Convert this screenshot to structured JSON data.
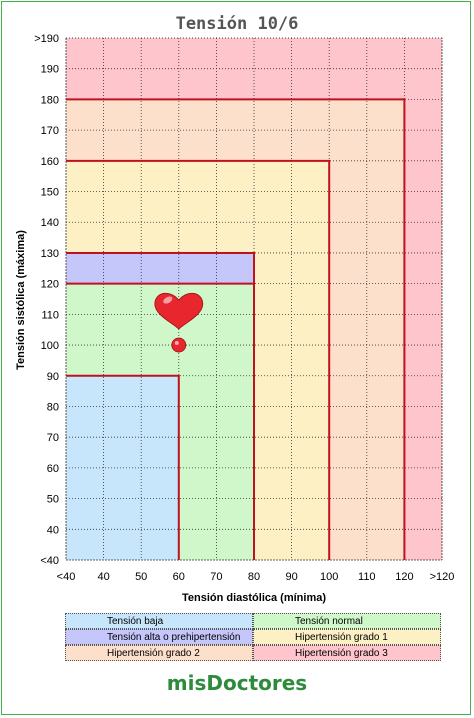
{
  "chart_data": {
    "type": "area",
    "title": "Tensión 10/6",
    "xlabel": "Tensión diastólica (mínima)",
    "ylabel": "Tensión sistólica (máxima)",
    "xlim": [
      30,
      130
    ],
    "ylim": [
      30,
      200
    ],
    "x_ticks": [
      "<40",
      "40",
      "50",
      "60",
      "70",
      "80",
      "90",
      "100",
      "110",
      "120",
      ">120"
    ],
    "x_tick_values": [
      30,
      40,
      50,
      60,
      70,
      80,
      90,
      100,
      110,
      120,
      130
    ],
    "y_ticks": [
      "<40",
      "40",
      "50",
      "60",
      "70",
      "80",
      "90",
      "100",
      "110",
      "120",
      "130",
      "140",
      "150",
      "160",
      "170",
      "180",
      "190",
      ">190"
    ],
    "y_tick_values": [
      30,
      40,
      50,
      60,
      70,
      80,
      90,
      100,
      110,
      120,
      130,
      140,
      150,
      160,
      170,
      180,
      190,
      200
    ],
    "grid": true,
    "zones": [
      {
        "name": "Hipertensión grado 3",
        "color": "#ffc5cc",
        "x_max": 130,
        "y_max": 200,
        "outlined": false
      },
      {
        "name": "Hipertensión grado 2",
        "color": "#fde0cc",
        "x_max": 120,
        "y_max": 180,
        "outlined": true
      },
      {
        "name": "Hipertensión grado 1",
        "color": "#fdf0c4",
        "x_max": 100,
        "y_max": 160,
        "outlined": true
      },
      {
        "name": "Tensión alta o prehipertensión",
        "color": "#c5c7fb",
        "x_max": 80,
        "y_max": 130,
        "outlined": true
      },
      {
        "name": "Tensión normal",
        "color": "#cff7c9",
        "x_max": 80,
        "y_max": 120,
        "outlined": true
      },
      {
        "name": "Tensión baja",
        "color": "#c7e5fb",
        "x_max": 60,
        "y_max": 90,
        "outlined": true
      }
    ],
    "marker": {
      "x": 60,
      "y": 100,
      "icon": "heart-icon",
      "color": "#e8262d"
    }
  },
  "legend": {
    "items": [
      {
        "label": "Tensión baja",
        "color": "#c7e5fb"
      },
      {
        "label": "Tensión normal",
        "color": "#cff7c9"
      },
      {
        "label": "Tensión alta o prehipertensión",
        "color": "#c5c7fb"
      },
      {
        "label": "Hipertensión grado 1",
        "color": "#fdf0c4"
      },
      {
        "label": "Hipertensión grado 2",
        "color": "#fde0cc"
      },
      {
        "label": "Hipertensión grado 3",
        "color": "#ffc5cc"
      }
    ]
  },
  "brand": {
    "name": "misDoctores",
    "color": "#2e8b3c"
  },
  "colors": {
    "zone_outline": "#c0111f",
    "frame": "#3fb24a"
  }
}
